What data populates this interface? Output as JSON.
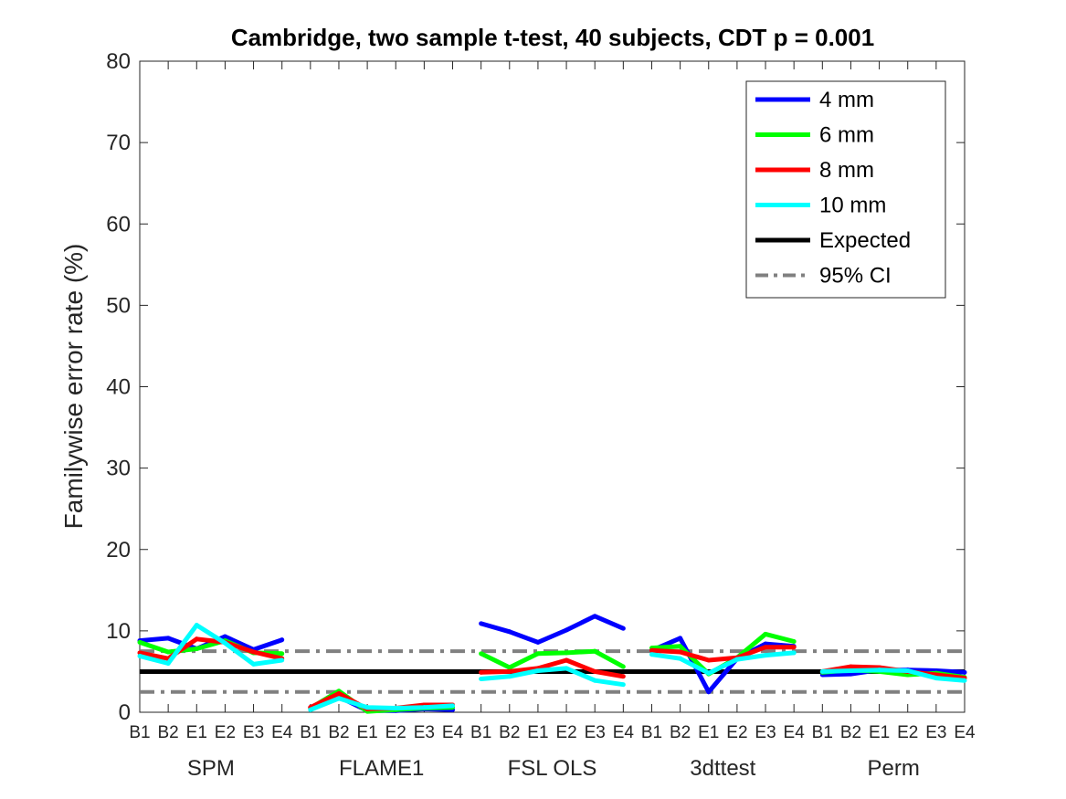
{
  "chart_data": {
    "type": "line",
    "title": "Cambridge, two sample t-test, 40 subjects, CDT p = 0.001",
    "ylabel": "Familywise error rate (%)",
    "xlabel": "",
    "ylim": [
      0,
      80
    ],
    "yticks": [
      "0",
      "10",
      "20",
      "30",
      "40",
      "50",
      "60",
      "70",
      "80"
    ],
    "groups": [
      {
        "name": "SPM",
        "categories": [
          "B1",
          "B2",
          "E1",
          "E2",
          "E3",
          "E4"
        ]
      },
      {
        "name": "FLAME1",
        "categories": [
          "B1",
          "B2",
          "E1",
          "E2",
          "E3",
          "E4"
        ]
      },
      {
        "name": "FSL OLS",
        "categories": [
          "B1",
          "B2",
          "E1",
          "E2",
          "E3",
          "E4"
        ]
      },
      {
        "name": "3dttest",
        "categories": [
          "B1",
          "B2",
          "E1",
          "E2",
          "E3",
          "E4"
        ]
      },
      {
        "name": "Perm",
        "categories": [
          "B1",
          "B2",
          "E1",
          "E2",
          "E3",
          "E4"
        ]
      }
    ],
    "series": [
      {
        "name": "4 mm",
        "color": "#0000ff",
        "values": [
          [
            8.8,
            9.1,
            7.8,
            9.3,
            7.7,
            8.9
          ],
          [
            0.6,
            1.9,
            0.2,
            0.2,
            0.4,
            0.3
          ],
          [
            10.9,
            9.9,
            8.6,
            10.1,
            11.8,
            10.3
          ],
          [
            7.6,
            9.1,
            2.5,
            6.6,
            8.4,
            8.1
          ],
          [
            4.6,
            4.7,
            5.2,
            5.2,
            5.1,
            4.9
          ]
        ]
      },
      {
        "name": "6 mm",
        "color": "#00ff00",
        "values": [
          [
            8.6,
            7.4,
            7.8,
            8.8,
            7.3,
            7.2
          ],
          [
            0.5,
            2.6,
            0.1,
            0.3,
            0.5,
            0.6
          ],
          [
            7.2,
            5.5,
            7.2,
            7.3,
            7.5,
            5.6
          ],
          [
            7.9,
            8.1,
            4.7,
            6.7,
            9.6,
            8.7
          ],
          [
            4.9,
            5.2,
            5.0,
            4.6,
            4.8,
            4.3
          ]
        ]
      },
      {
        "name": "8 mm",
        "color": "#ff0000",
        "values": [
          [
            7.3,
            6.6,
            9.0,
            8.6,
            7.4,
            6.6
          ],
          [
            0.6,
            2.3,
            0.4,
            0.5,
            0.9,
            0.9
          ],
          [
            4.9,
            5.0,
            5.4,
            6.4,
            5.0,
            4.4
          ],
          [
            7.6,
            7.4,
            6.4,
            6.7,
            8.0,
            8.0
          ],
          [
            5.0,
            5.6,
            5.5,
            5.0,
            4.6,
            4.2
          ]
        ]
      },
      {
        "name": "10 mm",
        "color": "#00ffff",
        "values": [
          [
            6.9,
            6.0,
            10.7,
            8.5,
            5.9,
            6.4
          ],
          [
            0.3,
            1.7,
            0.6,
            0.5,
            0.6,
            0.8
          ],
          [
            4.1,
            4.4,
            5.1,
            5.4,
            3.9,
            3.4
          ],
          [
            7.1,
            6.6,
            4.8,
            6.5,
            7.0,
            7.3
          ],
          [
            5.0,
            5.1,
            5.2,
            5.1,
            4.2,
            3.9
          ]
        ]
      }
    ],
    "reference_lines": [
      {
        "name": "Expected",
        "value": 5.0,
        "color": "#000000",
        "style": "solid"
      },
      {
        "name": "95% CI",
        "values": [
          2.5,
          7.5
        ],
        "color": "#808080",
        "style": "dash-dot"
      }
    ],
    "legend": {
      "position": "top-right",
      "entries": [
        {
          "label": "4 mm",
          "color": "#0000ff",
          "style": "solid"
        },
        {
          "label": "6 mm",
          "color": "#00ff00",
          "style": "solid"
        },
        {
          "label": "8 mm",
          "color": "#ff0000",
          "style": "solid"
        },
        {
          "label": "10 mm",
          "color": "#00ffff",
          "style": "solid"
        },
        {
          "label": "Expected",
          "color": "#000000",
          "style": "solid"
        },
        {
          "label": "95% CI",
          "color": "#808080",
          "style": "dash-dot"
        }
      ]
    },
    "grid": false
  }
}
